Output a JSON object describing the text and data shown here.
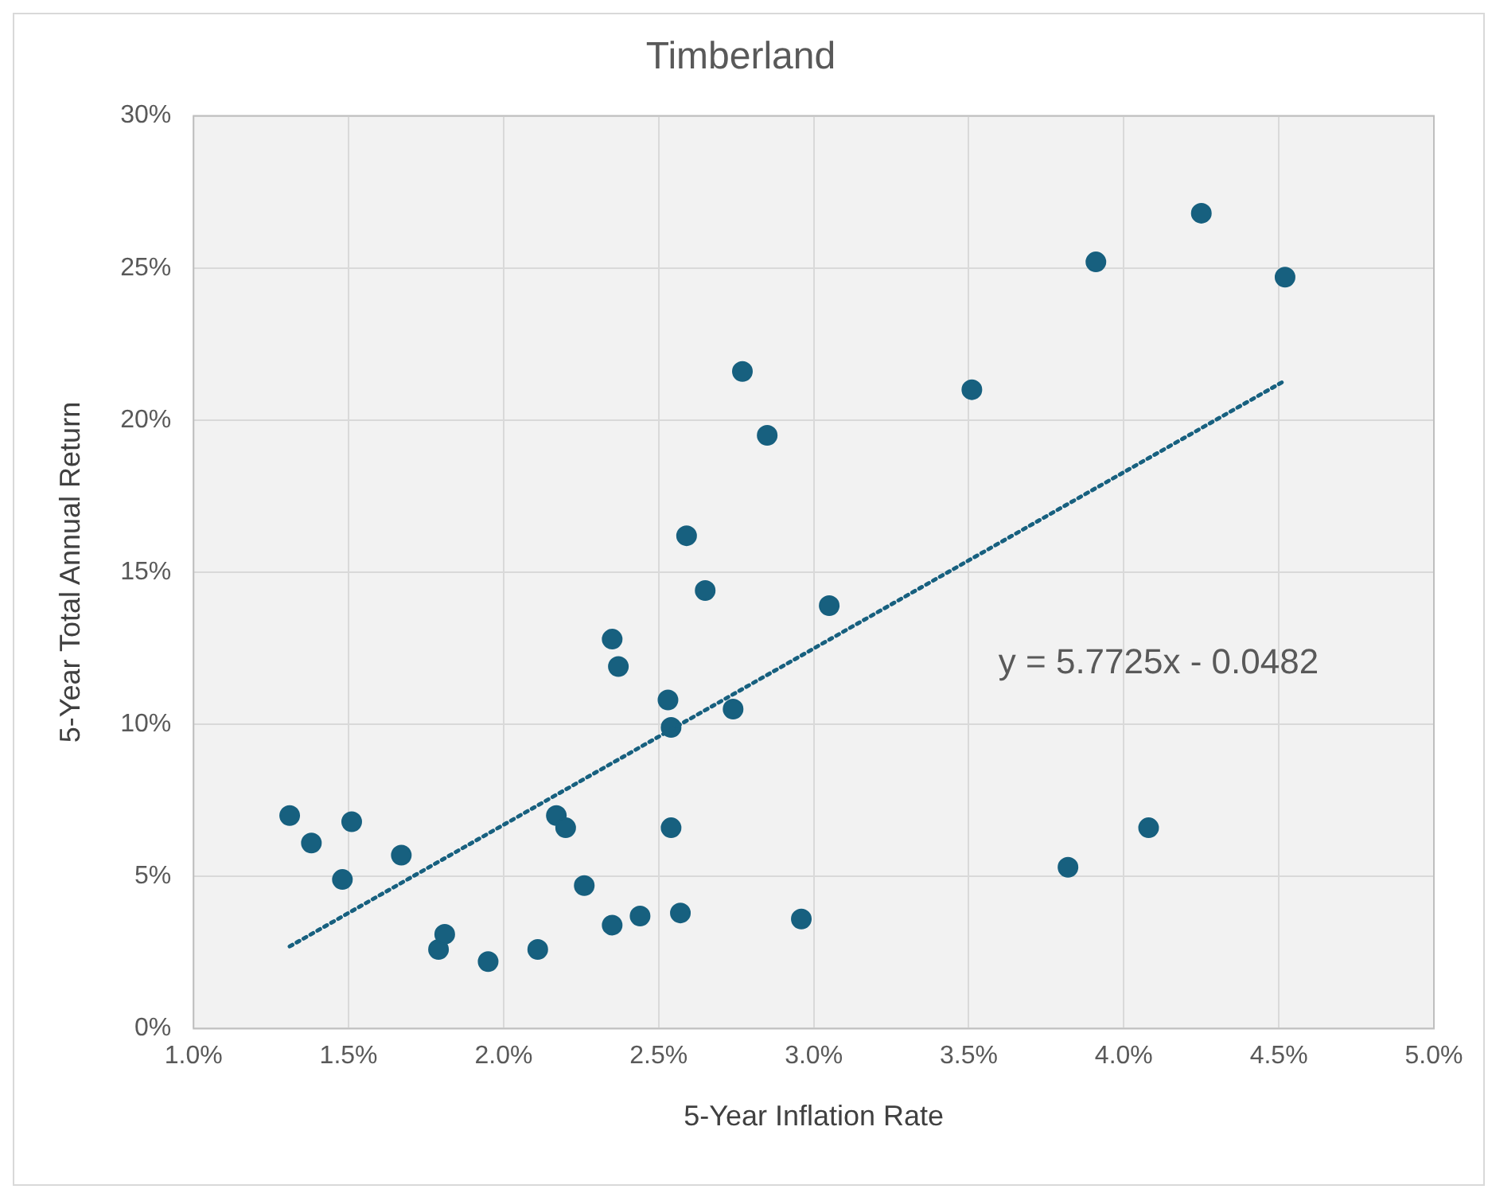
{
  "chart_data": {
    "type": "scatter",
    "title": "Timberland",
    "xlabel": "5-Year Inflation Rate",
    "ylabel": "5-Year Total Annual Return",
    "xlim": [
      1.0,
      5.0
    ],
    "xticks": [
      {
        "value": 1.0,
        "label": "1.0%"
      },
      {
        "value": 1.5,
        "label": "1.5%"
      },
      {
        "value": 2.0,
        "label": "2.0%"
      },
      {
        "value": 2.5,
        "label": "2.5%"
      },
      {
        "value": 3.0,
        "label": "3.0%"
      },
      {
        "value": 3.5,
        "label": "3.5%"
      },
      {
        "value": 4.0,
        "label": "4.0%"
      },
      {
        "value": 4.5,
        "label": "4.5%"
      },
      {
        "value": 5.0,
        "label": "5.0%"
      }
    ],
    "ylim": [
      0,
      30
    ],
    "yticks": [
      {
        "value": 0,
        "label": "0%"
      },
      {
        "value": 5,
        "label": "5%"
      },
      {
        "value": 10,
        "label": "10%"
      },
      {
        "value": 15,
        "label": "15%"
      },
      {
        "value": 20,
        "label": "20%"
      },
      {
        "value": 25,
        "label": "25%"
      },
      {
        "value": 30,
        "label": "30%"
      }
    ],
    "grid": true,
    "legend": false,
    "marker": "circle",
    "series": [
      {
        "color": "#17607f",
        "x": [
          1.31,
          1.38,
          1.51,
          1.48,
          1.67,
          1.79,
          1.81,
          1.95,
          2.11,
          2.17,
          2.2,
          2.26,
          2.35,
          2.44,
          2.35,
          2.37,
          2.53,
          2.54,
          2.54,
          2.57,
          2.59,
          2.65,
          2.74,
          2.77,
          2.85,
          2.96,
          3.05,
          3.51,
          3.82,
          3.91,
          4.08,
          4.25,
          4.52
        ],
        "values": [
          7.0,
          6.1,
          6.8,
          4.9,
          5.7,
          2.6,
          3.1,
          2.2,
          2.6,
          7.0,
          6.6,
          4.7,
          3.4,
          3.7,
          12.8,
          11.9,
          10.8,
          9.9,
          6.6,
          3.8,
          16.2,
          14.4,
          10.5,
          21.6,
          19.5,
          3.6,
          13.9,
          21.0,
          5.3,
          25.2,
          6.6,
          26.8,
          24.7
        ]
      },
      {
        "type": "line",
        "color": "#17607f",
        "line_style": "dotted",
        "marker": "none",
        "x": [
          1.31,
          4.52
        ],
        "values": [
          2.7,
          21.3
        ]
      }
    ],
    "annotations": [
      "y = 5.7725x - 0.0482"
    ]
  }
}
